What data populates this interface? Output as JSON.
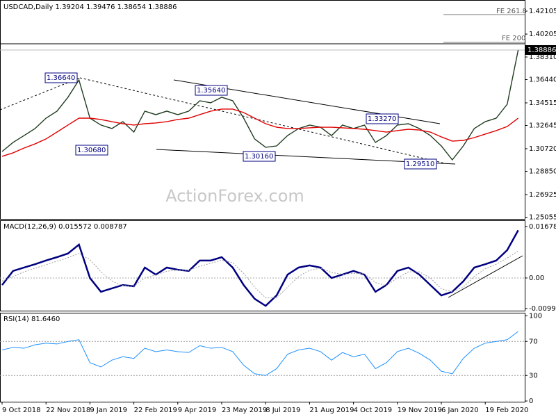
{
  "chart_data": [
    {
      "type": "line",
      "title": "USDCAD,Daily  1.39204 1.39476 1.38654 1.38886",
      "watermark": "ActionForex.com",
      "categories": [
        "9 Oct 2018",
        null,
        null,
        null,
        "22 Nov 2018",
        null,
        null,
        null,
        "9 Jan 2019",
        null,
        null,
        null,
        "22 Feb 2019",
        null,
        null,
        null,
        "9 Apr 2019",
        null,
        null,
        null,
        "23 May 2019",
        null,
        null,
        null,
        "8 Jul 2019",
        null,
        null,
        null,
        "21 Aug 2019",
        null,
        null,
        null,
        "4 Oct 2019",
        null,
        null,
        null,
        "19 Nov 2019",
        null,
        null,
        null,
        "6 Jan 2020",
        null,
        null,
        null,
        "19 Feb 2020",
        null,
        null,
        null
      ],
      "series": [
        {
          "color": "#1f3b1f",
          "values": [
            1.3049,
            1.3124,
            1.3181,
            1.3239,
            1.3325,
            1.3383,
            1.3498,
            1.3641,
            1.3325,
            1.3268,
            1.3239,
            1.3296,
            1.321,
            1.3383,
            1.3354,
            1.3383,
            1.3354,
            1.3383,
            1.3469,
            1.3452,
            1.3498,
            1.3469,
            1.3325,
            1.3153,
            1.3084,
            1.3095,
            1.3181,
            1.3239,
            1.3268,
            1.325,
            1.3181,
            1.3268,
            1.3239,
            1.3268,
            1.3124,
            1.3181,
            1.3268,
            1.3279,
            1.3239,
            1.3181,
            1.3095,
            1.298,
            1.3095,
            1.3239,
            1.3296,
            1.3325,
            1.344,
            1.38886
          ]
        },
        {
          "color": "#e00000",
          "values": [
            1.3009,
            1.3038,
            1.3078,
            1.3112,
            1.3153,
            1.321,
            1.3268,
            1.3325,
            1.3325,
            1.3314,
            1.3296,
            1.3279,
            1.3268,
            1.3279,
            1.3285,
            1.3296,
            1.3314,
            1.3325,
            1.3354,
            1.3383,
            1.34,
            1.34,
            1.3371,
            1.3325,
            1.3279,
            1.325,
            1.3239,
            1.3239,
            1.3245,
            1.325,
            1.325,
            1.3245,
            1.3239,
            1.3233,
            1.3222,
            1.321,
            1.3222,
            1.3233,
            1.3227,
            1.321,
            1.317,
            1.3135,
            1.3141,
            1.3164,
            1.3193,
            1.3222,
            1.3256,
            1.3325
          ]
        }
      ],
      "ylim": [
        1.25,
        1.428
      ],
      "yticks": [
        1.42105,
        1.40205,
        {
          "value": 1.3831,
          "label": "1.38310"
        },
        {
          "value": 1.3644,
          "label": "1.36440"
        },
        1.34515,
        1.32645,
        {
          "value": 1.3072,
          "label": "1.30720"
        },
        {
          "value": 1.2885,
          "label": "1.28850"
        },
        1.26925,
        1.25055
      ],
      "last_price": 1.38886,
      "annotations": [
        "1.36640",
        "1.35640",
        "1.30680",
        "1.30160",
        "1.33270",
        "1.29510",
        "FE 261.8",
        "FE 200"
      ]
    },
    {
      "type": "macd",
      "title": "MACD(12,26,9) 0.015572 0.008787",
      "series": [
        {
          "color": "#000080",
          "values": [
            -0.0023,
            0.0023,
            0.0034,
            0.0045,
            0.0057,
            0.0068,
            0.008,
            0.0109,
            0,
            -0.0045,
            -0.0034,
            -0.0023,
            -0.0027,
            0.0034,
            0.0011,
            0.0034,
            0.0027,
            0.0023,
            0.0057,
            0.0057,
            0.0068,
            0.0034,
            -0.0023,
            -0.0068,
            -0.0091,
            -0.0057,
            0.0011,
            0.0034,
            0.0041,
            0.0034,
            0,
            0.0011,
            0.0023,
            0.0011,
            -0.0045,
            -0.0023,
            0.0023,
            0.0034,
            0.0011,
            -0.0023,
            -0.0057,
            -0.0045,
            -0.0011,
            0.0034,
            0.0045,
            0.0057,
            0.0091,
            0.015572
          ]
        },
        {
          "color": "#a0a0a0",
          "values": [
            -0.001,
            0.0005,
            0.002,
            0.0032,
            0.0043,
            0.0055,
            0.0066,
            0.008,
            0.006,
            0.002,
            -0.001,
            -0.0025,
            -0.0027,
            0,
            0.001,
            0.0022,
            0.0026,
            0.0025,
            0.0038,
            0.0048,
            0.0058,
            0.005,
            0.0015,
            -0.003,
            -0.0065,
            -0.0065,
            -0.003,
            0.0005,
            0.0025,
            0.0032,
            0.0018,
            0.0012,
            0.0015,
            0.0014,
            -0.0015,
            -0.0025,
            0,
            0.002,
            0.002,
            0,
            -0.0035,
            -0.0045,
            -0.003,
            0.0005,
            0.003,
            0.0045,
            0.0065,
            0.008787
          ]
        }
      ],
      "ylim": [
        -0.0109,
        0.0186
      ],
      "yticks": [
        0.016789,
        {
          "value": 0,
          "label": "0.00"
        },
        -0.009989
      ]
    },
    {
      "type": "rsi",
      "title": "RSI(14) 81.6460",
      "series": [
        {
          "color": "#1e90ff",
          "values": [
            60,
            63,
            62,
            66,
            68,
            67,
            70,
            72,
            45,
            40,
            48,
            52,
            50,
            62,
            58,
            60,
            58,
            57,
            65,
            62,
            63,
            58,
            42,
            32,
            30,
            38,
            55,
            60,
            62,
            58,
            48,
            57,
            52,
            55,
            38,
            45,
            58,
            62,
            56,
            48,
            35,
            32,
            50,
            62,
            68,
            70,
            72,
            81.646
          ]
        }
      ],
      "ylim": [
        0,
        100
      ],
      "yticks": [
        100,
        70,
        30,
        0
      ]
    }
  ]
}
